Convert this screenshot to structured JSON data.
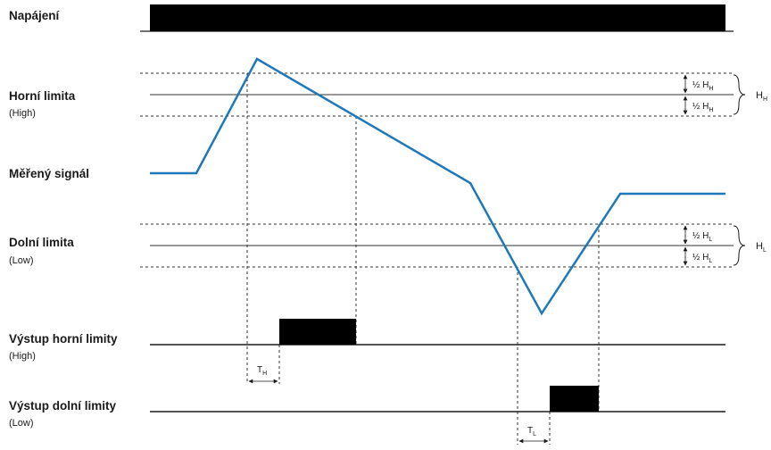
{
  "labels": {
    "power": "Napájení",
    "high_limit": "Horní limita",
    "high_limit_sub": "(High)",
    "signal": "Měřený signál",
    "low_limit": "Dolní limita",
    "low_limit_sub": "(Low)",
    "out_high": "Výstup horní limity",
    "out_high_sub": "(High)",
    "out_low": "Výstup dolní limity",
    "out_low_sub": "(Low)"
  },
  "hysteresis": {
    "half_hh": "½ H",
    "half_hh_idx": "H",
    "half_hl": "½ H",
    "half_hl_idx": "L",
    "hh": "H",
    "hh_idx": "H",
    "hl": "H",
    "hl_idx": "L"
  },
  "delays": {
    "th": "T",
    "th_idx": "H",
    "tl": "T",
    "tl_idx": "L"
  },
  "colors": {
    "signal": "#1f78b8",
    "line": "#1a1a1a",
    "block": "#000000"
  }
}
